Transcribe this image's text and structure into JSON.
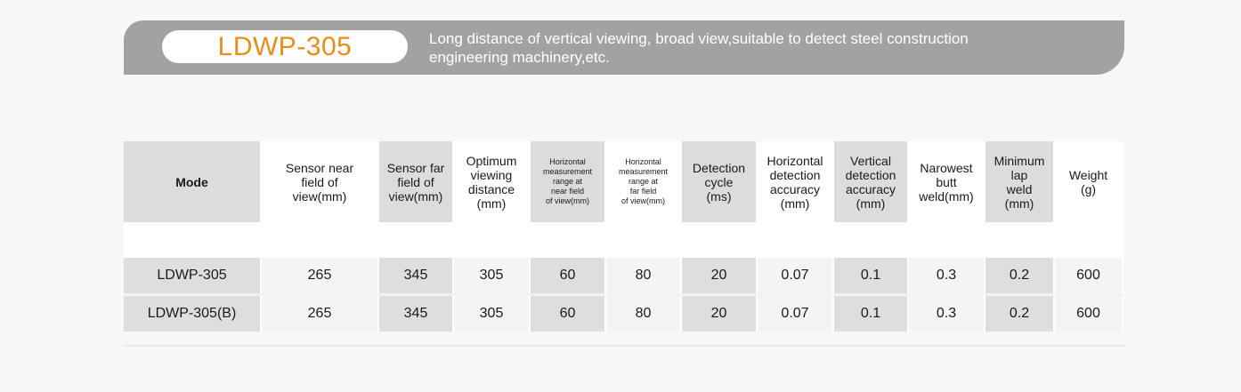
{
  "banner": {
    "model": "LDWP-305",
    "description_line1": "Long distance of  vertical viewing, broad view,suitable  to detect steel construction",
    "description_line2": "engineering machinery,etc."
  },
  "table": {
    "headers": [
      "Mode",
      "Sensor near field of view(mm)",
      "Sensor far field of view(mm)",
      "Optimum viewing distance (mm)",
      "Horizontal measurement range at near field of view(mm)",
      "Horizontal measurement range at far field of view(mm)",
      "Detection cycle (ms)",
      "Horizontal detection accuracy (mm)",
      "Vertical detection accuracy (mm)",
      "Narowest butt weld(mm)",
      "Minimum lap weld (mm)",
      "Weight (g)"
    ],
    "header_lines": [
      [
        "Mode"
      ],
      [
        "Sensor near",
        "field of",
        "view(mm)"
      ],
      [
        "Sensor far",
        "field of",
        "view(mm)"
      ],
      [
        "Optimum",
        "viewing",
        "distance",
        "(mm)"
      ],
      [
        "Horizontal",
        "measurement",
        "range at",
        "near field",
        "of view(mm)"
      ],
      [
        "Horizontal",
        "measurement",
        "range at",
        "far field",
        "of view(mm)"
      ],
      [
        "Detection",
        "cycle",
        "(ms)"
      ],
      [
        "Horizontal",
        "detection",
        "accuracy",
        "(mm)"
      ],
      [
        "Vertical",
        "detection",
        "accuracy",
        "(mm)"
      ],
      [
        "Narowest",
        "butt",
        "weld(mm)"
      ],
      [
        "Minimum",
        "lap",
        "weld",
        "(mm)"
      ],
      [
        "Weight",
        "(g)"
      ]
    ],
    "rows": [
      [
        "LDWP-305",
        "265",
        "345",
        "305",
        "60",
        "80",
        "20",
        "0.07",
        "0.1",
        "0.3",
        "0.2",
        "600"
      ],
      [
        "LDWP-305(B)",
        "265",
        "345",
        "305",
        "60",
        "80",
        "20",
        "0.07",
        "0.1",
        "0.3",
        "0.2",
        "600"
      ]
    ]
  }
}
